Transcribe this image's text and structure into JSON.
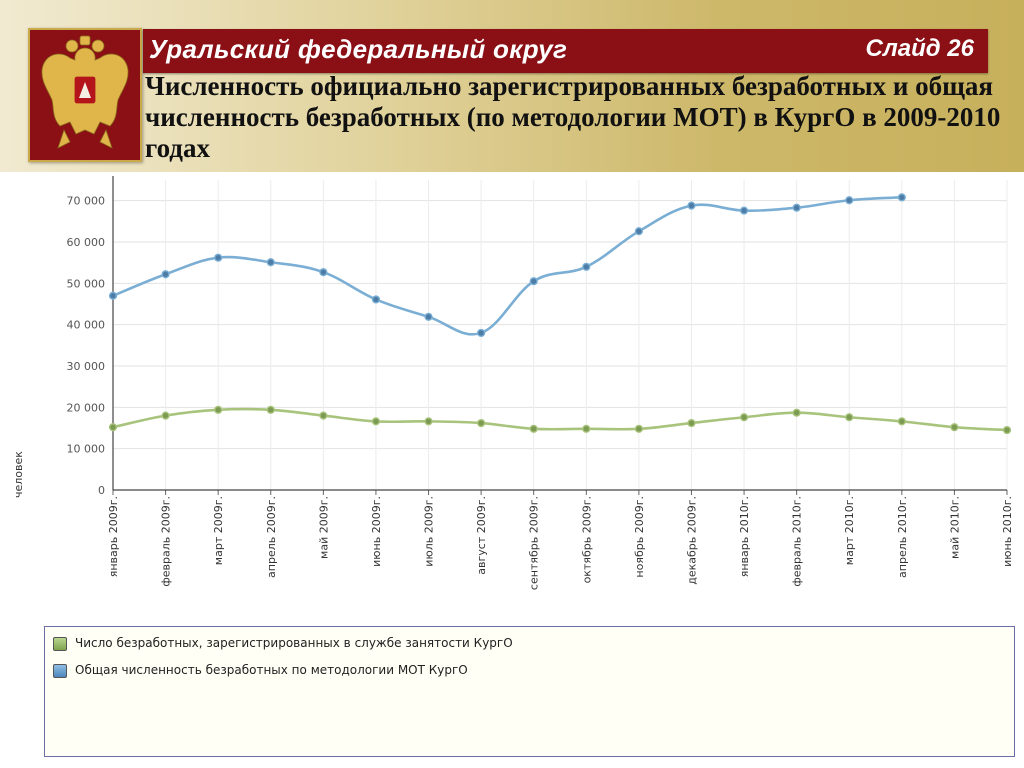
{
  "header": {
    "district": "Уральский федеральный округ",
    "slide_label": "Слайд 26",
    "title": "Численность официально зарегистрированных безработных и общая численность безработных (по методологии МОТ) в КургО в 2009-2010 годах"
  },
  "emblem": {
    "icon": "russian-coat-of-arms-icon"
  },
  "colors": {
    "header_bar": "#8a1015",
    "series_registered": "#a8c47c",
    "series_ilo": "#7aaed4",
    "legend_border": "#6b6ea6"
  },
  "chart_data": {
    "type": "line",
    "ylabel": "человек",
    "ylim": [
      0,
      75000
    ],
    "yticks": [
      "0",
      "10 000",
      "20 000",
      "30 000",
      "40 000",
      "50 000",
      "60 000",
      "70 000"
    ],
    "ytick_values": [
      0,
      10000,
      20000,
      30000,
      40000,
      50000,
      60000,
      70000
    ],
    "grid": true,
    "legend_position": "bottom",
    "categories": [
      "январь 2009г.",
      "февраль 2009г.",
      "март 2009г.",
      "апрель 2009г.",
      "май 2009г.",
      "июнь 2009г.",
      "июль 2009г.",
      "август 2009г.",
      "сентябрь 2009г.",
      "октябрь 2009г.",
      "ноябрь 2009г.",
      "декабрь 2009г.",
      "январь 2010г.",
      "февраль 2010г.",
      "март 2010г.",
      "апрель 2010г.",
      "май 2010г.",
      "июнь 2010г."
    ],
    "series": [
      {
        "name": "Число безработных, зарегистрированных в службе занятости  КургО",
        "color": "#a8c47c",
        "values": [
          15200,
          18000,
          19400,
          19400,
          18000,
          16600,
          16600,
          16200,
          14800,
          14800,
          14800,
          16200,
          17600,
          18700,
          17600,
          16600,
          15200,
          14500
        ]
      },
      {
        "name": "Общая численность безработных по методологии МОТ  КургО",
        "color": "#7aaed4",
        "values": [
          47000,
          52200,
          56200,
          55100,
          52700,
          46100,
          41900,
          38000,
          50500,
          54000,
          62600,
          68800,
          67600,
          68300,
          70100,
          70800,
          null,
          null
        ]
      }
    ]
  }
}
